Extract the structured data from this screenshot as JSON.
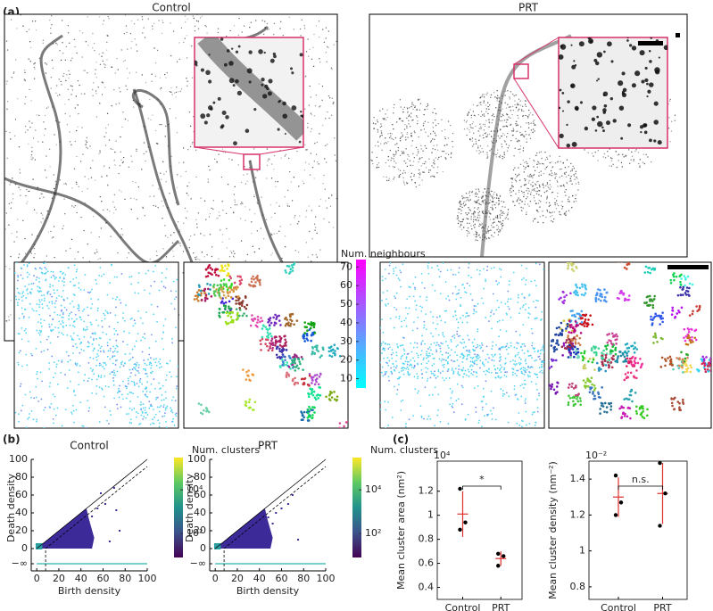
{
  "panel_labels": [
    "(a)",
    "(b)",
    "(c)"
  ],
  "image_titles": [
    "Control",
    "PRT"
  ],
  "neighbours_colorbar": {
    "label": "Num. neighbours",
    "lim": [
      5,
      74
    ],
    "ticks": [
      10,
      20,
      30,
      40,
      50,
      60,
      70
    ]
  },
  "chart_data": [
    {
      "type": "scatter",
      "title": "Control",
      "xlabel": "Birth density",
      "ylabel": "Death density",
      "xlim": [
        -5,
        100
      ],
      "ylim": [
        -25,
        100
      ],
      "xticks": [
        0,
        20,
        40,
        60,
        80,
        100
      ],
      "yticks": [
        {
          "value": -17,
          "label": "−∞"
        },
        0,
        20,
        40,
        60,
        80,
        100
      ],
      "x": [
        44,
        47,
        50,
        55,
        58,
        70,
        72,
        75,
        62,
        66
      ],
      "y": [
        40,
        30,
        36,
        45,
        62,
        68,
        43,
        20,
        50,
        8
      ],
      "color": "#3b2a98",
      "colorbar": {
        "label": "Num. clusters",
        "scale": "log",
        "lim": [
          8,
          300000
        ],
        "ticks": [
          {
            "value": 100,
            "label": "10²"
          },
          {
            "value": 10000,
            "label": "10⁴"
          }
        ]
      }
    },
    {
      "type": "scatter",
      "title": "PRT",
      "xlabel": "Birth density",
      "ylabel": "Death density",
      "xlim": [
        -5,
        100
      ],
      "ylim": [
        -25,
        100
      ],
      "xticks": [
        0,
        20,
        40,
        60,
        80,
        100
      ],
      "yticks": [
        {
          "value": -17,
          "label": "−∞"
        },
        0,
        20,
        40,
        60,
        80,
        100
      ],
      "x": [
        44,
        48,
        52,
        55,
        60,
        66,
        70,
        75
      ],
      "y": [
        42,
        35,
        28,
        40,
        45,
        50,
        60,
        10
      ],
      "color": "#3b2a98",
      "colorbar": {
        "label": "Num. clusters",
        "scale": "log",
        "lim": [
          8,
          300000
        ],
        "ticks": [
          {
            "value": 100,
            "label": "10²"
          },
          {
            "value": 10000,
            "label": "10⁴"
          }
        ]
      }
    },
    {
      "type": "dot_plot",
      "ylabel": "Mean cluster area (nm²)",
      "multiplier": "10⁴",
      "categories": [
        "Control",
        "PRT"
      ],
      "ylim": [
        0.3,
        1.45
      ],
      "yticks": [
        0.4,
        0.6,
        0.8,
        1,
        1.2
      ],
      "points": [
        [
          1.22,
          0.94,
          0.88
        ],
        [
          0.68,
          0.66,
          0.58
        ]
      ],
      "means": [
        1.01,
        0.64
      ],
      "errors": [
        0.19,
        0.06
      ],
      "point_color": "#000000",
      "mean_color": "#e03030",
      "significance": "*"
    },
    {
      "type": "dot_plot",
      "ylabel": "Mean cluster density (nm⁻²)",
      "multiplier": "10⁻²",
      "categories": [
        "Control",
        "PRT"
      ],
      "ylim": [
        0.73,
        1.5
      ],
      "yticks": [
        0.8,
        1,
        1.2,
        1.4
      ],
      "points": [
        [
          1.42,
          1.27,
          1.2
        ],
        [
          1.49,
          1.32,
          1.14
        ]
      ],
      "means": [
        1.3,
        1.32
      ],
      "errors": [
        0.11,
        0.17
      ],
      "point_color": "#000000",
      "mean_color": "#e03030",
      "significance": "n.s."
    }
  ]
}
